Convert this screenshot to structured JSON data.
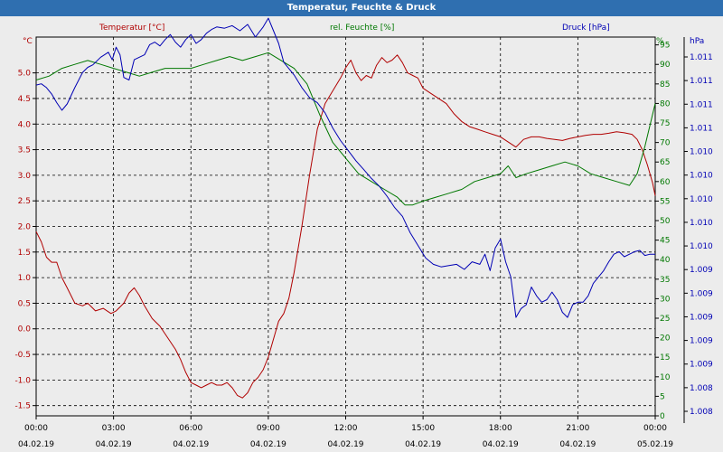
{
  "window": {
    "title": "Temperatur, Feuchte & Druck"
  },
  "chart_data": {
    "type": "line",
    "legend": {
      "temperature": "Temperatur [°C]",
      "humidity": "rel. Feuchte [%]",
      "pressure": "Druck [hPa]"
    },
    "axes": {
      "left": {
        "unit": "°C",
        "range": [
          -1.7,
          5.7
        ],
        "ticks": [
          "5.0",
          "4.5",
          "4.0",
          "3.5",
          "3.0",
          "2.5",
          "2.0",
          "1.5",
          "1.0",
          "0.5",
          "0.0",
          "-0.5",
          "-1.0",
          "-1.5"
        ],
        "tick_values": [
          5.0,
          4.5,
          4.0,
          3.5,
          3.0,
          2.5,
          2.0,
          1.5,
          1.0,
          0.5,
          0.0,
          -0.5,
          -1.0,
          -1.5
        ]
      },
      "mid": {
        "unit": "%",
        "range": [
          0,
          97
        ],
        "ticks": [
          "95",
          "90",
          "85",
          "80",
          "75",
          "70",
          "65",
          "60",
          "55",
          "50",
          "45",
          "40",
          "35",
          "30",
          "25",
          "20",
          "15",
          "10",
          "5",
          "0"
        ],
        "tick_values": [
          95,
          90,
          85,
          80,
          75,
          70,
          65,
          60,
          55,
          50,
          45,
          40,
          35,
          30,
          25,
          20,
          15,
          10,
          5,
          0
        ]
      },
      "right": {
        "unit": "hPa",
        "range": [
          1008,
          1011
        ],
        "ticks": [
          "1.011",
          "1.011",
          "1.011",
          "1.011",
          "1.010",
          "1.010",
          "1.010",
          "1.010",
          "1.010",
          "1.009",
          "1.009",
          "1.009",
          "1.009",
          "1.009",
          "1.008",
          "1.008"
        ]
      },
      "x": {
        "range": [
          0,
          24
        ],
        "tick_hours": [
          0,
          3,
          6,
          9,
          12,
          15,
          18,
          21,
          24
        ],
        "time_labels": [
          "00:00",
          "03:00",
          "06:00",
          "09:00",
          "12:00",
          "15:00",
          "18:00",
          "21:00",
          "00:00"
        ],
        "date_labels": [
          "04.02.19",
          "04.02.19",
          "04.02.19",
          "04.02.19",
          "04.02.19",
          "04.02.19",
          "04.02.19",
          "04.02.19",
          "05.02.19"
        ]
      }
    },
    "colors": {
      "temperature": "#b00000",
      "humidity": "#007800",
      "pressure": "#0000b4",
      "titlebar": "#2f6fb0"
    },
    "series": [
      {
        "name": "Temperatur [°C]",
        "axis": "left",
        "x": [
          0,
          0.2,
          0.4,
          0.6,
          0.8,
          1.0,
          1.2,
          1.5,
          1.8,
          2.0,
          2.3,
          2.6,
          2.9,
          3.1,
          3.4,
          3.6,
          3.8,
          4.0,
          4.2,
          4.5,
          4.8,
          5.0,
          5.2,
          5.4,
          5.6,
          5.8,
          6.0,
          6.2,
          6.4,
          6.6,
          6.8,
          7.0,
          7.2,
          7.4,
          7.6,
          7.8,
          8.0,
          8.2,
          8.4,
          8.6,
          8.8,
          9.0,
          9.2,
          9.4,
          9.6,
          9.8,
          10.0,
          10.3,
          10.6,
          10.9,
          11.2,
          11.5,
          11.8,
          12.0,
          12.2,
          12.4,
          12.6,
          12.8,
          13.0,
          13.2,
          13.4,
          13.6,
          13.8,
          14.0,
          14.2,
          14.4,
          14.6,
          14.8,
          15.0,
          15.3,
          15.6,
          15.9,
          16.2,
          16.5,
          16.8,
          17.1,
          17.4,
          17.7,
          18.0,
          18.3,
          18.6,
          18.9,
          19.2,
          19.5,
          19.8,
          20.1,
          20.4,
          20.7,
          21.0,
          21.3,
          21.6,
          21.9,
          22.2,
          22.5,
          22.8,
          23.1,
          23.3,
          23.5,
          23.7,
          23.9,
          24.0
        ],
        "values": [
          1.9,
          1.7,
          1.4,
          1.3,
          1.3,
          1.0,
          0.8,
          0.5,
          0.45,
          0.5,
          0.35,
          0.4,
          0.3,
          0.35,
          0.5,
          0.7,
          0.8,
          0.65,
          0.45,
          0.2,
          0.05,
          -0.1,
          -0.25,
          -0.4,
          -0.6,
          -0.85,
          -1.05,
          -1.1,
          -1.15,
          -1.1,
          -1.05,
          -1.1,
          -1.1,
          -1.05,
          -1.15,
          -1.3,
          -1.35,
          -1.25,
          -1.05,
          -0.95,
          -0.8,
          -0.55,
          -0.2,
          0.15,
          0.3,
          0.6,
          1.1,
          2.0,
          3.0,
          3.9,
          4.4,
          4.65,
          4.9,
          5.1,
          5.25,
          5.0,
          4.85,
          4.95,
          4.9,
          5.15,
          5.3,
          5.2,
          5.25,
          5.35,
          5.2,
          5.0,
          4.95,
          4.9,
          4.7,
          4.6,
          4.5,
          4.4,
          4.2,
          4.05,
          3.95,
          3.9,
          3.85,
          3.8,
          3.75,
          3.65,
          3.55,
          3.7,
          3.75,
          3.75,
          3.72,
          3.7,
          3.68,
          3.72,
          3.75,
          3.78,
          3.8,
          3.8,
          3.82,
          3.85,
          3.83,
          3.8,
          3.7,
          3.5,
          3.2,
          2.85,
          2.6
        ]
      },
      {
        "name": "rel. Feuchte [%]",
        "axis": "mid",
        "x": [
          0,
          0.5,
          1.0,
          1.5,
          2.0,
          2.5,
          3.0,
          3.5,
          4.0,
          4.5,
          5.0,
          5.5,
          6.0,
          6.5,
          7.0,
          7.5,
          8.0,
          8.5,
          9.0,
          9.5,
          10.0,
          10.5,
          11.0,
          11.5,
          12.0,
          12.5,
          13.0,
          13.5,
          14.0,
          14.3,
          14.6,
          15.0,
          15.5,
          16.0,
          16.5,
          17.0,
          17.5,
          18.0,
          18.3,
          18.6,
          19.0,
          19.5,
          20.0,
          20.5,
          21.0,
          21.5,
          22.0,
          22.5,
          23.0,
          23.3,
          23.6,
          24.0
        ],
        "values": [
          86,
          87,
          89,
          90,
          91,
          90,
          89,
          88,
          87,
          88,
          89,
          89,
          89,
          90,
          91,
          92,
          91,
          92,
          93,
          91,
          89,
          85,
          77,
          70,
          66,
          62,
          60,
          58,
          56,
          54,
          54,
          55,
          56,
          57,
          58,
          60,
          61,
          62,
          64,
          61,
          62,
          63,
          64,
          65,
          64,
          62,
          61,
          60,
          59,
          62,
          69,
          80
        ]
      },
      {
        "name": "Druck [hPa]",
        "axis": "right",
        "x": [
          0,
          0.2,
          0.4,
          0.6,
          0.8,
          1.0,
          1.2,
          1.5,
          1.8,
          2.0,
          2.2,
          2.5,
          2.8,
          2.95,
          3.1,
          3.25,
          3.4,
          3.6,
          3.8,
          4.0,
          4.2,
          4.4,
          4.6,
          4.8,
          5.0,
          5.2,
          5.4,
          5.6,
          5.8,
          6.0,
          6.2,
          6.4,
          6.6,
          6.8,
          7.0,
          7.3,
          7.6,
          7.9,
          8.2,
          8.5,
          8.8,
          9.0,
          9.2,
          9.4,
          9.6,
          9.8,
          10.0,
          10.3,
          10.6,
          10.9,
          11.2,
          11.5,
          11.8,
          12.1,
          12.4,
          12.7,
          13.0,
          13.3,
          13.6,
          13.9,
          14.2,
          14.5,
          14.8,
          15.1,
          15.4,
          15.7,
          16.0,
          16.3,
          16.6,
          16.9,
          17.2,
          17.4,
          17.6,
          17.8,
          18.0,
          18.2,
          18.4,
          18.6,
          18.8,
          19.0,
          19.2,
          19.4,
          19.6,
          19.8,
          20.0,
          20.2,
          20.4,
          20.6,
          20.8,
          21.0,
          21.2,
          21.4,
          21.6,
          21.8,
          22.0,
          22.2,
          22.4,
          22.6,
          22.8,
          23.0,
          23.2,
          23.4,
          23.6,
          23.8,
          24.0
        ],
        "values": [
          1010.62,
          1010.63,
          1010.6,
          1010.55,
          1010.48,
          1010.42,
          1010.47,
          1010.6,
          1010.72,
          1010.76,
          1010.78,
          1010.84,
          1010.88,
          1010.82,
          1010.92,
          1010.86,
          1010.68,
          1010.66,
          1010.82,
          1010.84,
          1010.86,
          1010.94,
          1010.96,
          1010.93,
          1010.98,
          1011.02,
          1010.96,
          1010.92,
          1010.98,
          1011.02,
          1010.95,
          1010.98,
          1011.03,
          1011.06,
          1011.08,
          1011.07,
          1011.09,
          1011.05,
          1011.1,
          1011.0,
          1011.08,
          1011.15,
          1011.05,
          1010.95,
          1010.8,
          1010.75,
          1010.7,
          1010.6,
          1010.52,
          1010.48,
          1010.4,
          1010.28,
          1010.18,
          1010.1,
          1010.02,
          1009.95,
          1009.88,
          1009.82,
          1009.74,
          1009.65,
          1009.58,
          1009.45,
          1009.35,
          1009.25,
          1009.2,
          1009.18,
          1009.19,
          1009.2,
          1009.16,
          1009.22,
          1009.2,
          1009.28,
          1009.15,
          1009.33,
          1009.4,
          1009.22,
          1009.1,
          1008.78,
          1008.85,
          1008.88,
          1009.02,
          1008.95,
          1008.9,
          1008.92,
          1008.98,
          1008.92,
          1008.82,
          1008.78,
          1008.88,
          1008.9,
          1008.9,
          1008.95,
          1009.05,
          1009.1,
          1009.15,
          1009.22,
          1009.28,
          1009.3,
          1009.26,
          1009.28,
          1009.3,
          1009.31,
          1009.27,
          1009.28,
          1009.28
        ]
      }
    ],
    "grid": true
  }
}
